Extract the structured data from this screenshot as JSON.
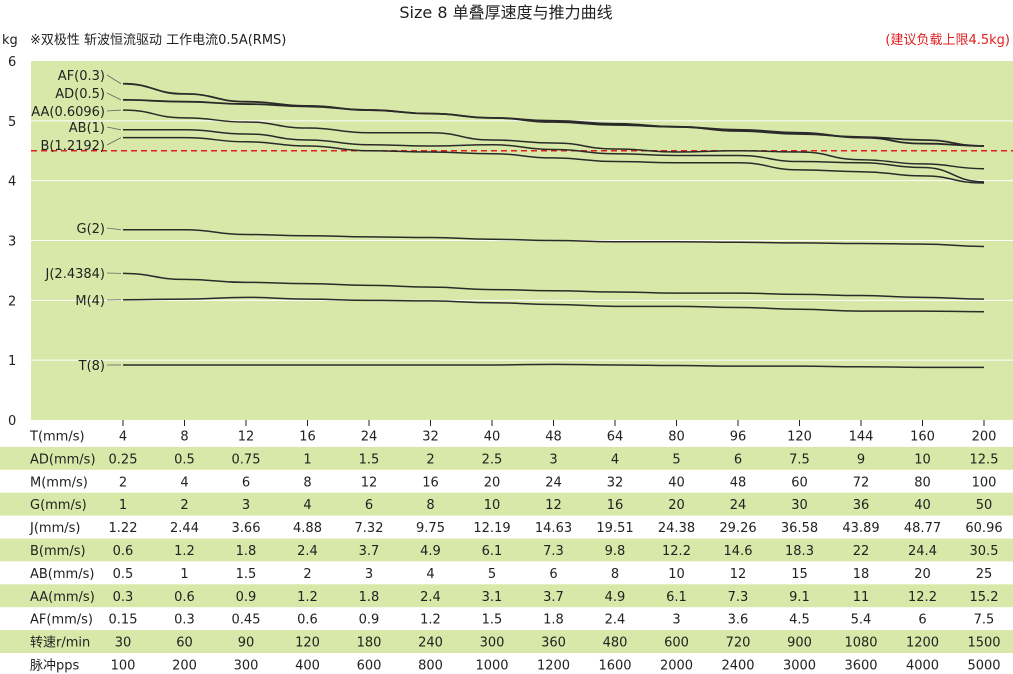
{
  "chart_data": {
    "type": "line",
    "title": "Size 8 单叠厚速度与推力曲线",
    "yunit": "kg",
    "subtitle": "※双极性 斩波恒流驱动 工作电流0.5A(RMS)",
    "limit_note": "(建议负载上限4.5kg)",
    "limit_value": 4.5,
    "ylim": [
      0,
      6
    ],
    "yticks": [
      "0",
      "1",
      "2",
      "3",
      "4",
      "5",
      "6"
    ],
    "grid": true,
    "colors": {
      "plot_bg": "#d8e8a8",
      "line": "#2a2a2a",
      "limit": "#e02020",
      "table_band": "#d8e8a8"
    },
    "series": [
      {
        "name": "AF(0.3)",
        "values": [
          5.62,
          5.45,
          5.32,
          5.25,
          5.18,
          5.12,
          5.05,
          4.98,
          4.93,
          4.9,
          4.83,
          4.78,
          4.73,
          4.68,
          4.58
        ]
      },
      {
        "name": "AD(0.5)",
        "values": [
          5.35,
          5.32,
          5.28,
          5.24,
          5.18,
          5.12,
          5.05,
          5.0,
          4.95,
          4.9,
          4.85,
          4.8,
          4.72,
          4.62,
          4.58
        ]
      },
      {
        "name": "AA(0.6096)",
        "values": [
          5.18,
          5.05,
          4.98,
          4.88,
          4.8,
          4.8,
          4.68,
          4.63,
          4.53,
          4.48,
          4.5,
          4.48,
          4.35,
          4.28,
          4.2
        ]
      },
      {
        "name": "AB(1)",
        "values": [
          4.85,
          4.85,
          4.78,
          4.68,
          4.6,
          4.58,
          4.6,
          4.52,
          4.45,
          4.42,
          4.42,
          4.32,
          4.3,
          4.22,
          3.98
        ]
      },
      {
        "name": "B(1.2192)",
        "values": [
          4.72,
          4.72,
          4.65,
          4.58,
          4.5,
          4.48,
          4.45,
          4.38,
          4.32,
          4.3,
          4.3,
          4.18,
          4.15,
          4.08,
          3.96
        ]
      },
      {
        "name": "G(2)",
        "values": [
          3.18,
          3.18,
          3.1,
          3.08,
          3.06,
          3.05,
          3.02,
          3.0,
          2.98,
          2.98,
          2.97,
          2.96,
          2.95,
          2.94,
          2.9
        ]
      },
      {
        "name": "J(2.4384)",
        "values": [
          2.45,
          2.35,
          2.3,
          2.28,
          2.25,
          2.22,
          2.18,
          2.16,
          2.14,
          2.12,
          2.12,
          2.1,
          2.08,
          2.05,
          2.02
        ]
      },
      {
        "name": "M(4)",
        "values": [
          2.01,
          2.02,
          2.05,
          2.02,
          2.0,
          1.99,
          1.96,
          1.93,
          1.9,
          1.9,
          1.88,
          1.85,
          1.82,
          1.82,
          1.81
        ]
      },
      {
        "name": "T(8)",
        "values": [
          0.92,
          0.92,
          0.92,
          0.92,
          0.92,
          0.92,
          0.92,
          0.93,
          0.92,
          0.91,
          0.9,
          0.9,
          0.89,
          0.88,
          0.88
        ]
      }
    ],
    "table": [
      {
        "label": "T(mm/s)",
        "values": [
          "4",
          "8",
          "12",
          "16",
          "24",
          "32",
          "40",
          "48",
          "64",
          "80",
          "96",
          "120",
          "144",
          "160",
          "200"
        ]
      },
      {
        "label": "AD(mm/s)",
        "values": [
          "0.25",
          "0.5",
          "0.75",
          "1",
          "1.5",
          "2",
          "2.5",
          "3",
          "4",
          "5",
          "6",
          "7.5",
          "9",
          "10",
          "12.5"
        ]
      },
      {
        "label": "M(mm/s)",
        "values": [
          "2",
          "4",
          "6",
          "8",
          "12",
          "16",
          "20",
          "24",
          "32",
          "40",
          "48",
          "60",
          "72",
          "80",
          "100"
        ]
      },
      {
        "label": "G(mm/s)",
        "values": [
          "1",
          "2",
          "3",
          "4",
          "6",
          "8",
          "10",
          "12",
          "16",
          "20",
          "24",
          "30",
          "36",
          "40",
          "50"
        ]
      },
      {
        "label": "J(mm/s)",
        "values": [
          "1.22",
          "2.44",
          "3.66",
          "4.88",
          "7.32",
          "9.75",
          "12.19",
          "14.63",
          "19.51",
          "24.38",
          "29.26",
          "36.58",
          "43.89",
          "48.77",
          "60.96"
        ]
      },
      {
        "label": "B(mm/s)",
        "values": [
          "0.6",
          "1.2",
          "1.8",
          "2.4",
          "3.7",
          "4.9",
          "6.1",
          "7.3",
          "9.8",
          "12.2",
          "14.6",
          "18.3",
          "22",
          "24.4",
          "30.5"
        ]
      },
      {
        "label": "AB(mm/s)",
        "values": [
          "0.5",
          "1",
          "1.5",
          "2",
          "3",
          "4",
          "5",
          "6",
          "8",
          "10",
          "12",
          "15",
          "18",
          "20",
          "25"
        ]
      },
      {
        "label": "AA(mm/s)",
        "values": [
          "0.3",
          "0.6",
          "0.9",
          "1.2",
          "1.8",
          "2.4",
          "3.1",
          "3.7",
          "4.9",
          "6.1",
          "7.3",
          "9.1",
          "11",
          "12.2",
          "15.2"
        ]
      },
      {
        "label": "AF(mm/s)",
        "values": [
          "0.15",
          "0.3",
          "0.45",
          "0.6",
          "0.9",
          "1.2",
          "1.5",
          "1.8",
          "2.4",
          "3",
          "3.6",
          "4.5",
          "5.4",
          "6",
          "7.5"
        ]
      },
      {
        "label": "转速r/min",
        "values": [
          "30",
          "60",
          "90",
          "120",
          "180",
          "240",
          "300",
          "360",
          "480",
          "600",
          "720",
          "900",
          "1080",
          "1200",
          "1500"
        ]
      },
      {
        "label": "脉冲pps",
        "values": [
          "100",
          "200",
          "300",
          "400",
          "600",
          "800",
          "1000",
          "1200",
          "1600",
          "2000",
          "2400",
          "3000",
          "3600",
          "4000",
          "5000"
        ]
      }
    ]
  }
}
